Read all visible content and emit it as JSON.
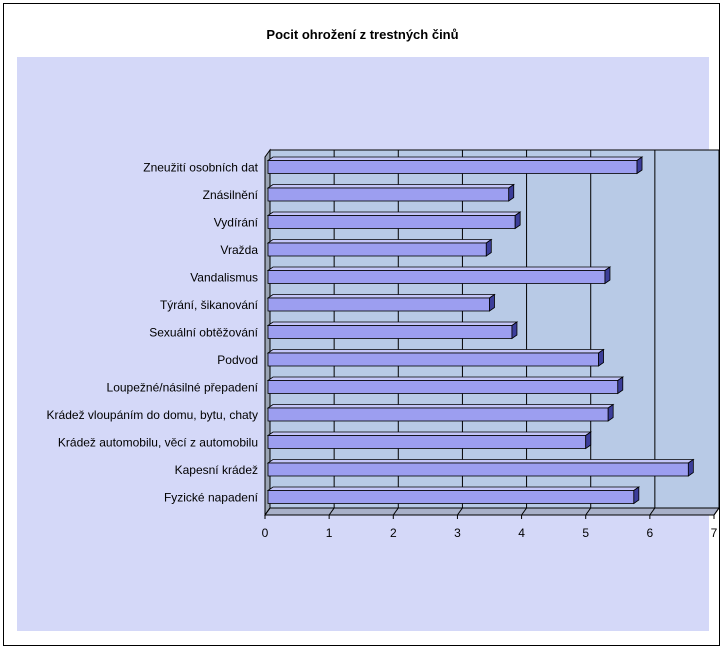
{
  "chart_data": {
    "type": "bar",
    "orientation": "horizontal",
    "style": "3d",
    "title": "Pocit ohrožení z trestných činů",
    "categories": [
      "Zneužití osobních dat",
      "Znásilnění",
      "Vydírání",
      "Vražda",
      "Vandalismus",
      "Týrání, šikanování",
      "Sexuální obtěžování",
      "Podvod",
      "Loupežné/násilné přepadení",
      "Krádež vloupáním do domu, bytu, chaty",
      "Krádež automobilu, věcí z automobilu",
      "Kapesní krádež",
      "Fyzické napadení"
    ],
    "values": [
      5.8,
      3.8,
      3.9,
      3.45,
      5.3,
      3.5,
      3.85,
      5.2,
      5.5,
      5.35,
      5.0,
      6.6,
      5.75
    ],
    "xlabel": "",
    "ylabel": "",
    "xlim": [
      0,
      7
    ],
    "xticks": [
      "0",
      "1",
      "2",
      "3",
      "4",
      "5",
      "6",
      "7"
    ],
    "grid": true,
    "legend": "none",
    "colors": {
      "bar_front": "#9c9ef0",
      "bar_top": "#c4c6f8",
      "bar_side": "#3c3e9a",
      "bar_edge": "#000000",
      "plot_area": "#d4d8f8",
      "wall": "#b8cae6",
      "wall_side": "#9aa4b4",
      "gridline": "#000000"
    }
  }
}
